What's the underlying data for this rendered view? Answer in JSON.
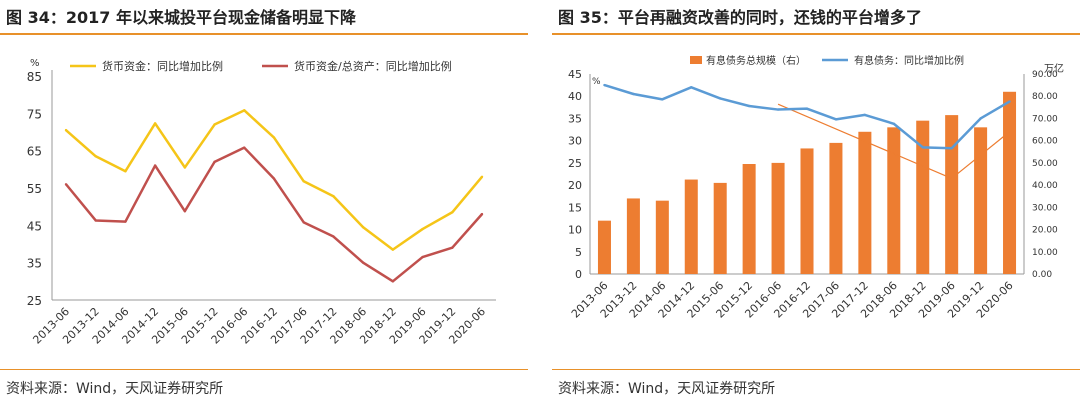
{
  "chart_data": [
    {
      "type": "line",
      "title": "图 34：2017 年以来城投平台现金储备明显下降",
      "source": "资料来源：Wind，天风证券研究所",
      "yunit": "%",
      "ylim": [
        25,
        85
      ],
      "yticks": [
        25,
        35,
        45,
        55,
        65,
        75,
        85
      ],
      "grid": false,
      "legend_position": "top",
      "categories": [
        "2013-06",
        "2013-12",
        "2014-06",
        "2014-12",
        "2015-06",
        "2015-12",
        "2016-06",
        "2016-12",
        "2017-06",
        "2017-12",
        "2018-06",
        "2018-12",
        "2019-06",
        "2019-12",
        "2020-06"
      ],
      "series": [
        {
          "name": "货币资金：同比增加比例",
          "color": "#f5c518",
          "values": [
            70.5,
            63.5,
            59.5,
            72.3,
            60.5,
            72.0,
            75.8,
            68.5,
            56.8,
            52.8,
            44.5,
            38.5,
            44.0,
            48.5,
            58.0
          ]
        },
        {
          "name": "货币资金/总资产：同比增加比例",
          "color": "#c0504d",
          "values": [
            56.0,
            46.3,
            46.0,
            61.0,
            48.8,
            62.0,
            65.8,
            57.5,
            45.8,
            42.0,
            35.0,
            30.0,
            36.5,
            39.0,
            48.0
          ]
        }
      ]
    },
    {
      "type": "bar+line",
      "title": "图 35：平台再融资改善的同时，还钱的平台增多了",
      "source": "资料来源：Wind，天风证券研究所",
      "yunit_left": "%",
      "yunit_right": "万亿",
      "ylim_left": [
        0,
        45
      ],
      "yticks_left": [
        0,
        5,
        10,
        15,
        20,
        25,
        30,
        35,
        40,
        45
      ],
      "ylim_right": [
        0,
        90
      ],
      "yticks_right": [
        "0.00",
        "10.00",
        "20.00",
        "30.00",
        "40.00",
        "50.00",
        "60.00",
        "70.00",
        "80.00",
        "90.00"
      ],
      "grid": false,
      "legend_position": "top",
      "categories": [
        "2013-06",
        "2013-12",
        "2014-06",
        "2014-12",
        "2015-06",
        "2015-12",
        "2016-06",
        "2016-12",
        "2017-06",
        "2017-12",
        "2018-06",
        "2018-12",
        "2019-06",
        "2019-12",
        "2020-06"
      ],
      "bar_series": {
        "name": "有息债务总规模（右）",
        "color": "#ed7d31",
        "axis": "right",
        "values": [
          24.0,
          34.0,
          33.0,
          42.5,
          41.0,
          49.5,
          50.0,
          56.5,
          59.0,
          64.0,
          66.0,
          69.0,
          71.5,
          66.0,
          82.0
        ]
      },
      "line_series": {
        "name": "有息债务：同比增加比例",
        "color": "#5b9bd5",
        "axis": "left",
        "values": [
          42.5,
          40.5,
          39.3,
          42.0,
          39.5,
          37.8,
          37.0,
          37.2,
          34.8,
          35.8,
          33.8,
          28.5,
          28.3,
          35.0,
          38.8
        ]
      },
      "trend_lines": [
        {
          "color": "#ed7d31",
          "points": [
            [
              6,
              38.2
            ],
            [
              12,
              21.5
            ]
          ]
        },
        {
          "color": "#ed7d31",
          "points": [
            [
              12,
              21.5
            ],
            [
              14,
              32.0
            ]
          ]
        }
      ]
    }
  ]
}
